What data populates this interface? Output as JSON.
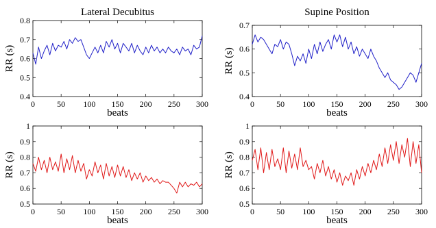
{
  "chart_data": [
    {
      "type": "line",
      "title": "Lateral Decubitus",
      "xlabel": "beats",
      "ylabel": "RR (s)",
      "xlim": [
        0,
        300
      ],
      "ylim": [
        0.4,
        0.8
      ],
      "xticks": [
        0,
        50,
        100,
        150,
        200,
        250,
        300
      ],
      "yticks": [
        0.4,
        0.5,
        0.6,
        0.7,
        0.8
      ],
      "yticklabels": [
        "0.4",
        "0.5",
        "0.6",
        "0.7",
        "0.8"
      ],
      "color": "#2020c8",
      "series": [
        {
          "x": [
            0,
            5,
            10,
            15,
            20,
            25,
            30,
            35,
            40,
            45,
            50,
            55,
            60,
            65,
            70,
            75,
            80,
            85,
            90,
            95,
            100,
            105,
            110,
            115,
            120,
            125,
            130,
            135,
            140,
            145,
            150,
            155,
            160,
            165,
            170,
            175,
            180,
            185,
            190,
            195,
            200,
            205,
            210,
            215,
            220,
            225,
            230,
            235,
            240,
            245,
            250,
            255,
            260,
            265,
            270,
            275,
            280,
            285,
            290,
            295,
            300
          ],
          "values": [
            0.63,
            0.57,
            0.66,
            0.6,
            0.64,
            0.67,
            0.62,
            0.68,
            0.64,
            0.67,
            0.66,
            0.69,
            0.65,
            0.7,
            0.68,
            0.71,
            0.69,
            0.7,
            0.66,
            0.62,
            0.6,
            0.63,
            0.66,
            0.63,
            0.67,
            0.63,
            0.69,
            0.66,
            0.7,
            0.65,
            0.68,
            0.63,
            0.68,
            0.66,
            0.64,
            0.68,
            0.63,
            0.67,
            0.64,
            0.62,
            0.66,
            0.63,
            0.67,
            0.64,
            0.66,
            0.63,
            0.65,
            0.63,
            0.66,
            0.64,
            0.63,
            0.65,
            0.62,
            0.66,
            0.64,
            0.65,
            0.62,
            0.67,
            0.65,
            0.66,
            0.72
          ]
        }
      ]
    },
    {
      "type": "line",
      "title": "Supine Position",
      "xlabel": "beats",
      "ylabel": "RR (s)",
      "xlim": [
        0,
        300
      ],
      "ylim": [
        0.4,
        0.7
      ],
      "xticks": [
        0,
        50,
        100,
        150,
        200,
        250,
        300
      ],
      "yticks": [
        0.4,
        0.5,
        0.6,
        0.7
      ],
      "yticklabels": [
        "0.4",
        "0.5",
        "0.6",
        "0.7"
      ],
      "color": "#2020c8",
      "series": [
        {
          "x": [
            0,
            5,
            10,
            15,
            20,
            25,
            30,
            35,
            40,
            45,
            50,
            55,
            60,
            65,
            70,
            75,
            80,
            85,
            90,
            95,
            100,
            105,
            110,
            115,
            120,
            125,
            130,
            135,
            140,
            145,
            150,
            155,
            160,
            165,
            170,
            175,
            180,
            185,
            190,
            195,
            200,
            205,
            210,
            215,
            220,
            225,
            230,
            235,
            240,
            245,
            250,
            255,
            260,
            265,
            270,
            275,
            280,
            285,
            290,
            295,
            300
          ],
          "values": [
            0.62,
            0.66,
            0.63,
            0.65,
            0.64,
            0.62,
            0.6,
            0.58,
            0.62,
            0.61,
            0.64,
            0.6,
            0.63,
            0.62,
            0.58,
            0.53,
            0.57,
            0.55,
            0.58,
            0.54,
            0.6,
            0.56,
            0.62,
            0.58,
            0.63,
            0.59,
            0.62,
            0.64,
            0.6,
            0.66,
            0.63,
            0.66,
            0.61,
            0.65,
            0.6,
            0.63,
            0.58,
            0.61,
            0.57,
            0.6,
            0.58,
            0.56,
            0.6,
            0.57,
            0.55,
            0.52,
            0.5,
            0.48,
            0.5,
            0.47,
            0.46,
            0.45,
            0.43,
            0.44,
            0.46,
            0.48,
            0.5,
            0.49,
            0.46,
            0.5,
            0.54
          ]
        }
      ]
    },
    {
      "type": "line",
      "title": "",
      "xlabel": "beats",
      "ylabel": "RR (s)",
      "xlim": [
        0,
        300
      ],
      "ylim": [
        0.5,
        1.0
      ],
      "xticks": [
        0,
        50,
        100,
        150,
        200,
        250,
        300
      ],
      "yticks": [
        0.5,
        0.6,
        0.7,
        0.8,
        0.9,
        1.0
      ],
      "yticklabels": [
        "0.5",
        "0.6",
        "0.7",
        "0.8",
        "0.9",
        "1"
      ],
      "color": "#e01818",
      "series": [
        {
          "x": [
            0,
            5,
            10,
            15,
            20,
            25,
            30,
            35,
            40,
            45,
            50,
            55,
            60,
            65,
            70,
            75,
            80,
            85,
            90,
            95,
            100,
            105,
            110,
            115,
            120,
            125,
            130,
            135,
            140,
            145,
            150,
            155,
            160,
            165,
            170,
            175,
            180,
            185,
            190,
            195,
            200,
            205,
            210,
            215,
            220,
            225,
            230,
            235,
            240,
            245,
            250,
            255,
            260,
            265,
            270,
            275,
            280,
            285,
            290,
            295,
            300
          ],
          "values": [
            0.76,
            0.71,
            0.8,
            0.72,
            0.78,
            0.7,
            0.8,
            0.72,
            0.77,
            0.71,
            0.82,
            0.7,
            0.79,
            0.72,
            0.81,
            0.7,
            0.78,
            0.71,
            0.76,
            0.66,
            0.72,
            0.68,
            0.77,
            0.7,
            0.75,
            0.66,
            0.76,
            0.68,
            0.74,
            0.67,
            0.75,
            0.68,
            0.74,
            0.67,
            0.72,
            0.65,
            0.7,
            0.66,
            0.7,
            0.64,
            0.68,
            0.65,
            0.67,
            0.64,
            0.66,
            0.63,
            0.65,
            0.64,
            0.64,
            0.62,
            0.6,
            0.57,
            0.64,
            0.61,
            0.64,
            0.61,
            0.63,
            0.62,
            0.64,
            0.61,
            0.63
          ]
        }
      ]
    },
    {
      "type": "line",
      "title": "",
      "xlabel": "beats",
      "ylabel": "RR (s)",
      "xlim": [
        0,
        300
      ],
      "ylim": [
        0.5,
        1.0
      ],
      "xticks": [
        0,
        50,
        100,
        150,
        200,
        250,
        300
      ],
      "yticks": [
        0.5,
        0.6,
        0.7,
        0.8,
        0.9,
        1.0
      ],
      "yticklabels": [
        "0.5",
        "0.6",
        "0.7",
        "0.8",
        "0.9",
        "1"
      ],
      "color": "#e01818",
      "series": [
        {
          "x": [
            0,
            5,
            10,
            15,
            20,
            25,
            30,
            35,
            40,
            45,
            50,
            55,
            60,
            65,
            70,
            75,
            80,
            85,
            90,
            95,
            100,
            105,
            110,
            115,
            120,
            125,
            130,
            135,
            140,
            145,
            150,
            155,
            160,
            165,
            170,
            175,
            180,
            185,
            190,
            195,
            200,
            205,
            210,
            215,
            220,
            225,
            230,
            235,
            240,
            245,
            250,
            255,
            260,
            265,
            270,
            275,
            280,
            285,
            290,
            295,
            300
          ],
          "values": [
            0.78,
            0.85,
            0.72,
            0.86,
            0.7,
            0.83,
            0.72,
            0.85,
            0.74,
            0.79,
            0.72,
            0.86,
            0.7,
            0.84,
            0.73,
            0.82,
            0.72,
            0.86,
            0.74,
            0.78,
            0.72,
            0.74,
            0.66,
            0.76,
            0.7,
            0.78,
            0.68,
            0.74,
            0.66,
            0.72,
            0.64,
            0.7,
            0.62,
            0.68,
            0.65,
            0.7,
            0.62,
            0.72,
            0.66,
            0.74,
            0.68,
            0.76,
            0.7,
            0.78,
            0.72,
            0.82,
            0.74,
            0.86,
            0.76,
            0.88,
            0.78,
            0.9,
            0.76,
            0.88,
            0.8,
            0.92,
            0.74,
            0.9,
            0.76,
            0.88,
            0.7
          ]
        }
      ]
    }
  ]
}
